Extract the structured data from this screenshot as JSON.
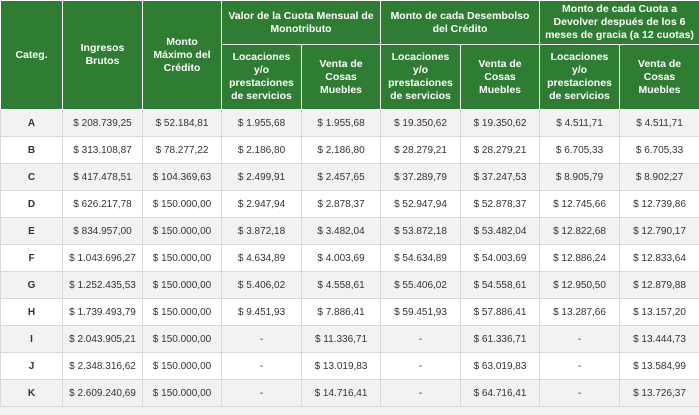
{
  "headers": {
    "categ": "Categ.",
    "ingresos": "Ingresos Brutos",
    "monto_maximo": "Monto Máximo del Crédito",
    "valor_cuota": "Valor de la Cuota Mensual de Monotributo",
    "monto_desembolso": "Monto de cada Desembolso del Crédito",
    "monto_cuota_devolver": "Monto de cada Cuota a Devolver después de los 6 meses de gracia (a 12 cuotas)",
    "locaciones": "Locaciones y/o prestaciones de servicios",
    "venta": "Venta de Cosas Muebles"
  },
  "rows": [
    [
      "A",
      "$ 208.739,25",
      "$ 52.184,81",
      "$ 1.955,68",
      "$ 1.955,68",
      "$ 19.350,62",
      "$ 19.350,62",
      "$ 4.511,71",
      "$ 4.511,71"
    ],
    [
      "B",
      "$ 313.108,87",
      "$ 78.277,22",
      "$ 2.186,80",
      "$ 2.186,80",
      "$ 28.279,21",
      "$ 28.279,21",
      "$ 6.705,33",
      "$ 6.705,33"
    ],
    [
      "C",
      "$ 417.478,51",
      "$ 104.369,63",
      "$ 2.499,91",
      "$ 2.457,65",
      "$ 37.289,79",
      "$ 37.247,53",
      "$ 8.905,79",
      "$ 8.902,27"
    ],
    [
      "D",
      "$ 626.217,78",
      "$ 150.000,00",
      "$ 2.947,94",
      "$ 2.878,37",
      "$ 52.947,94",
      "$ 52.878,37",
      "$ 12.745,66",
      "$ 12.739,86"
    ],
    [
      "E",
      "$ 834.957,00",
      "$ 150.000,00",
      "$ 3.872,18",
      "$ 3.482,04",
      "$ 53.872,18",
      "$ 53.482,04",
      "$ 12.822,68",
      "$ 12.790,17"
    ],
    [
      "F",
      "$ 1.043.696,27",
      "$ 150.000,00",
      "$ 4.634,89",
      "$ 4.003,69",
      "$ 54.634,89",
      "$ 54.003,69",
      "$ 12.886,24",
      "$ 12.833,64"
    ],
    [
      "G",
      "$ 1.252.435,53",
      "$ 150.000,00",
      "$ 5.406,02",
      "$ 4.558,61",
      "$ 55.406,02",
      "$ 54.558,61",
      "$ 12.950,50",
      "$ 12.879,88"
    ],
    [
      "H",
      "$ 1.739.493,79",
      "$ 150.000,00",
      "$ 9.451,93",
      "$ 7.886,41",
      "$ 59.451,93",
      "$ 57.886,41",
      "$ 13.287,66",
      "$ 13.157,20"
    ],
    [
      "I",
      "$ 2.043.905,21",
      "$ 150.000,00",
      "-",
      "$ 11.336,71",
      "-",
      "$ 61.336,71",
      "-",
      "$ 13.444,73"
    ],
    [
      "J",
      "$ 2.348.316,62",
      "$ 150.000,00",
      "-",
      "$ 13.019,83",
      "-",
      "$ 63.019,83",
      "-",
      "$ 13.584,99"
    ],
    [
      "K",
      "$ 2.609.240,69",
      "$ 150.000,00",
      "-",
      "$ 14.716,41",
      "-",
      "$ 64.716,41",
      "-",
      "$ 13.726,37"
    ]
  ]
}
